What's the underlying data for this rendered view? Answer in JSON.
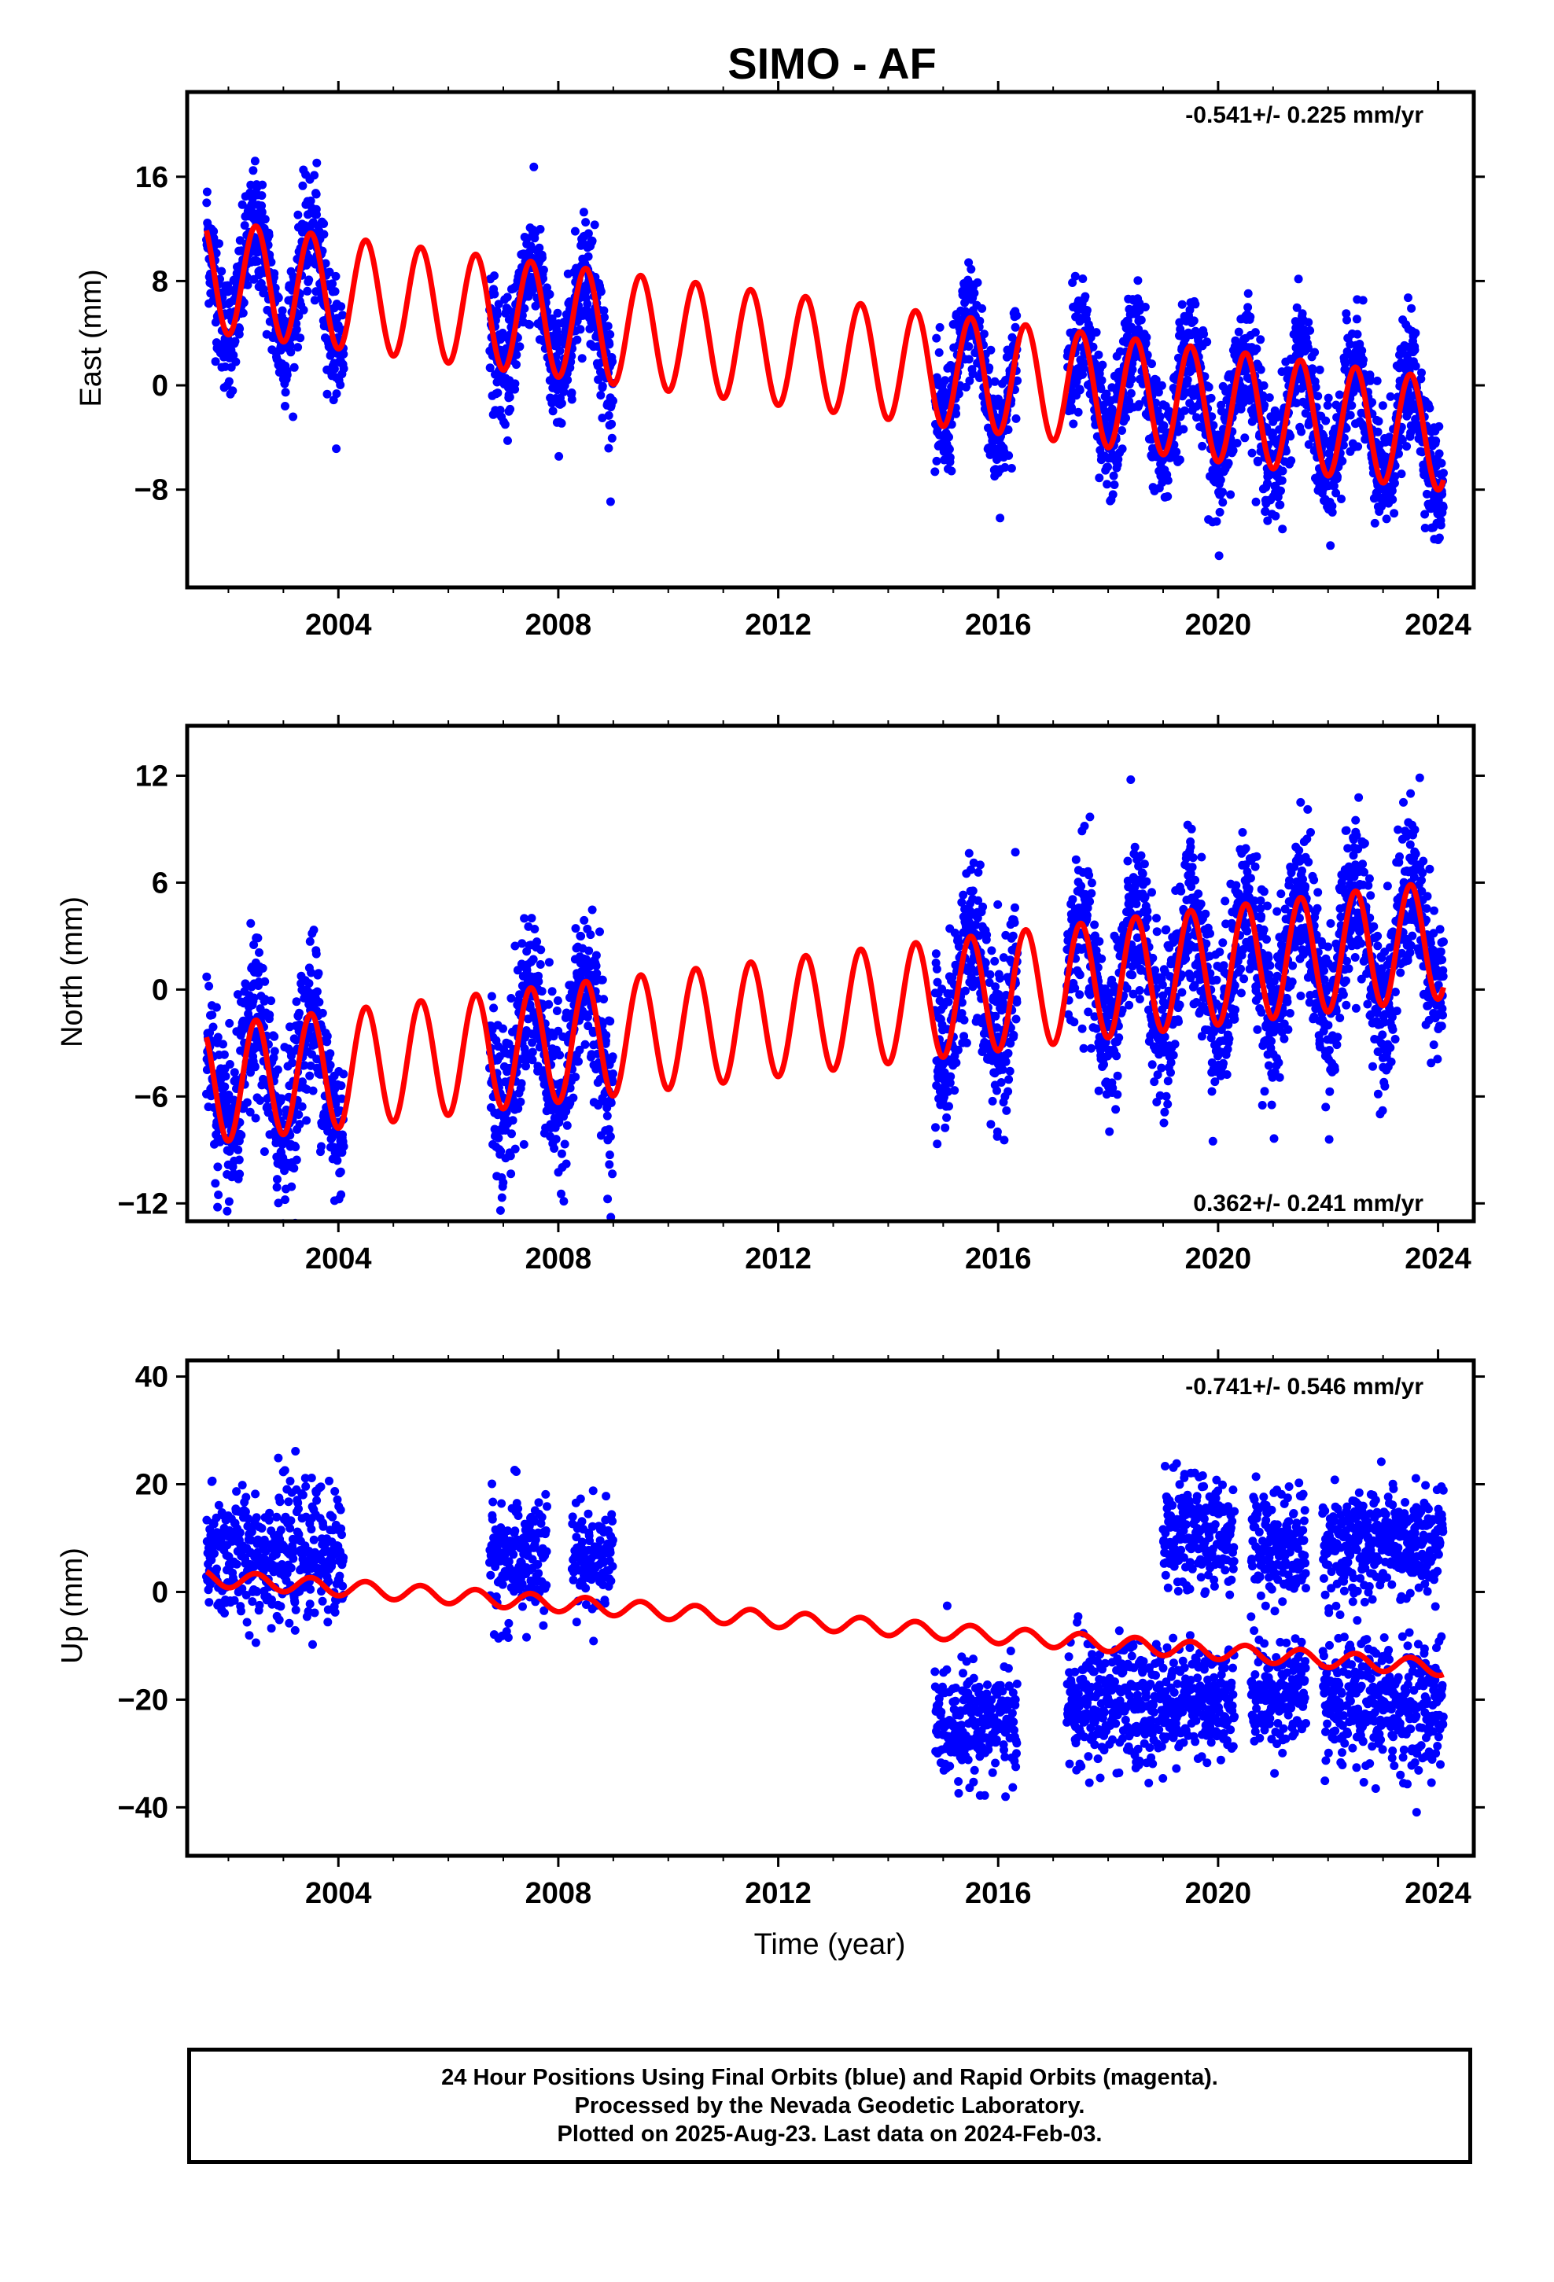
{
  "title": "SIMO - AF",
  "xlabel": "Time (year)",
  "colors": {
    "final_orbits": "#0000ff",
    "model": "#ff0000",
    "frame": "#000000"
  },
  "footer": {
    "line1": "24 Hour Positions Using Final Orbits (blue) and Rapid Orbits (magenta).",
    "line2": "Processed by the Nevada Geodetic Laboratory.",
    "line3": "Plotted on 2025-Aug-23. Last data on 2024-Feb-03."
  },
  "chart_data": [
    {
      "type": "scatter",
      "component": "east",
      "ylabel": "East (mm)",
      "xlim": [
        2001.25,
        2024.65
      ],
      "ylim": [
        -15.5,
        22.5
      ],
      "xticks": [
        2004,
        2008,
        2012,
        2016,
        2020,
        2024
      ],
      "xtick_labels": [
        "2004",
        "2008",
        "2012",
        "2016",
        "2020",
        "2024"
      ],
      "yticks": [
        -8,
        0,
        8,
        16
      ],
      "ytick_labels": [
        "−8",
        "0",
        "8",
        "16"
      ],
      "rate_label": "-0.541+/- 0.225 mm/yr",
      "rate_position": "top-right",
      "data_segments": [
        [
          2001.6,
          2004.1
        ],
        [
          2006.75,
          2009.0
        ],
        [
          2014.85,
          2016.35
        ],
        [
          2017.25,
          2024.1
        ]
      ],
      "series": [
        {
          "kind": "observations",
          "color": "#0000ff",
          "points": [
            [
              2001.7,
              11.5
            ],
            [
              2002.0,
              4.0
            ],
            [
              2002.2,
              6.5
            ],
            [
              2002.5,
              14.8
            ],
            [
              2002.8,
              8.5
            ],
            [
              2003.1,
              2.8
            ],
            [
              2003.3,
              7.0
            ],
            [
              2003.6,
              13.5
            ],
            [
              2003.9,
              1.5
            ],
            [
              2006.85,
              4.5
            ],
            [
              2007.1,
              -2.0
            ],
            [
              2007.4,
              9.5
            ],
            [
              2007.7,
              5.0
            ],
            [
              2008.1,
              -0.5
            ],
            [
              2008.4,
              7.5
            ],
            [
              2008.8,
              -2.5
            ],
            [
              2015.0,
              -4.5
            ],
            [
              2015.4,
              2.0
            ],
            [
              2015.7,
              1.5
            ],
            [
              2016.1,
              -5.0
            ],
            [
              2017.4,
              2.5
            ],
            [
              2017.8,
              -3.0
            ],
            [
              2018.4,
              1.5
            ],
            [
              2018.8,
              -5.5
            ],
            [
              2019.4,
              1.0
            ],
            [
              2019.9,
              -6.5
            ],
            [
              2020.4,
              0.0
            ],
            [
              2020.9,
              -7.0
            ],
            [
              2021.4,
              -0.5
            ],
            [
              2021.9,
              -7.5
            ],
            [
              2022.4,
              -1.0
            ],
            [
              2022.9,
              -8.5
            ],
            [
              2023.4,
              -1.5
            ],
            [
              2023.9,
              -9.0
            ]
          ]
        },
        {
          "kind": "model",
          "color": "#ff0000",
          "trend_mm_per_yr": -0.541,
          "t_ref": 2012.5,
          "offset_mm": 2.5,
          "annual_amplitude_mm": 4.3,
          "peak_time_frac": 0.5
        }
      ]
    },
    {
      "type": "scatter",
      "component": "north",
      "ylabel": "North (mm)",
      "xlim": [
        2001.25,
        2024.65
      ],
      "ylim": [
        -13.0,
        14.8
      ],
      "xticks": [
        2004,
        2008,
        2012,
        2016,
        2020,
        2024
      ],
      "xtick_labels": [
        "2004",
        "2008",
        "2012",
        "2016",
        "2020",
        "2024"
      ],
      "yticks": [
        -12,
        -6,
        0,
        6,
        12
      ],
      "ytick_labels": [
        "−12",
        "−6",
        "0",
        "6",
        "12"
      ],
      "rate_label": "0.362+/- 0.241 mm/yr",
      "rate_position": "bottom-right",
      "data_segments": [
        [
          2001.6,
          2004.1
        ],
        [
          2006.75,
          2009.0
        ],
        [
          2014.85,
          2016.35
        ],
        [
          2017.25,
          2024.1
        ]
      ],
      "series": [
        {
          "kind": "observations",
          "color": "#0000ff",
          "points": [
            [
              2001.8,
              -3.0
            ],
            [
              2002.2,
              -8.5
            ],
            [
              2002.5,
              1.5
            ],
            [
              2002.9,
              -4.5
            ],
            [
              2003.2,
              -7.0
            ],
            [
              2003.6,
              2.0
            ],
            [
              2003.9,
              -5.5
            ],
            [
              2006.9,
              -2.0
            ],
            [
              2007.2,
              -6.5
            ],
            [
              2007.5,
              2.5
            ],
            [
              2007.9,
              -3.5
            ],
            [
              2008.4,
              3.0
            ],
            [
              2008.8,
              -2.0
            ],
            [
              2015.0,
              -3.5
            ],
            [
              2015.5,
              2.5
            ],
            [
              2015.9,
              -4.0
            ],
            [
              2017.5,
              4.0
            ],
            [
              2017.9,
              -3.0
            ],
            [
              2018.5,
              5.0
            ],
            [
              2018.9,
              -2.0
            ],
            [
              2019.5,
              8.0
            ],
            [
              2019.9,
              0.5
            ],
            [
              2020.5,
              7.0
            ],
            [
              2020.9,
              1.5
            ],
            [
              2021.5,
              10.5
            ],
            [
              2021.9,
              2.5
            ],
            [
              2022.5,
              9.5
            ],
            [
              2022.9,
              3.0
            ],
            [
              2023.5,
              11.0
            ],
            [
              2023.9,
              2.0
            ]
          ]
        },
        {
          "kind": "model",
          "color": "#ff0000",
          "trend_mm_per_yr": 0.362,
          "t_ref": 2012.5,
          "offset_mm": -1.4,
          "annual_amplitude_mm": 3.3,
          "peak_time_frac": 0.5
        }
      ]
    },
    {
      "type": "scatter",
      "component": "up",
      "ylabel": "Up (mm)",
      "xlim": [
        2001.25,
        2024.65
      ],
      "ylim": [
        -49.0,
        43.0
      ],
      "xticks": [
        2004,
        2008,
        2012,
        2016,
        2020,
        2024
      ],
      "xtick_labels": [
        "2004",
        "2008",
        "2012",
        "2016",
        "2020",
        "2024"
      ],
      "yticks": [
        -40,
        -20,
        0,
        20,
        40
      ],
      "ytick_labels": [
        "−40",
        "−20",
        "0",
        "20",
        "40"
      ],
      "rate_label": "-0.741+/- 0.546 mm/yr",
      "rate_position": "top-right",
      "series": [
        {
          "kind": "observations",
          "color": "#0000ff",
          "clusters": [
            {
              "x": [
                2001.6,
                2004.1
              ],
              "mean": 7,
              "spread": 6
            },
            {
              "x": [
                2006.75,
                2007.8
              ],
              "mean": 6,
              "spread": 6
            },
            {
              "x": [
                2008.25,
                2009.0
              ],
              "mean": 6,
              "spread": 5
            },
            {
              "x": [
                2014.85,
                2016.35
              ],
              "mean": -24,
              "spread": 5
            },
            {
              "x": [
                2017.25,
                2019.0
              ],
              "mean": -21,
              "spread": 6
            },
            {
              "x": [
                2019.0,
                2020.3
              ],
              "mean": 11,
              "spread": 5
            },
            {
              "x": [
                2019.0,
                2020.3
              ],
              "mean": -20,
              "spread": 5
            },
            {
              "x": [
                2020.6,
                2021.6
              ],
              "mean": 9,
              "spread": 5
            },
            {
              "x": [
                2020.6,
                2021.6
              ],
              "mean": -19,
              "spread": 5
            },
            {
              "x": [
                2021.9,
                2024.1
              ],
              "mean": 9,
              "spread": 5
            },
            {
              "x": [
                2021.9,
                2024.1
              ],
              "mean": -21,
              "spread": 6
            }
          ]
        },
        {
          "kind": "model",
          "color": "#ff0000",
          "trend_mm_per_yr": -0.741,
          "t_ref": 2012.5,
          "offset_mm": -5.5,
          "annual_amplitude_mm": 1.5,
          "peak_time_frac": 0.5
        }
      ]
    }
  ]
}
